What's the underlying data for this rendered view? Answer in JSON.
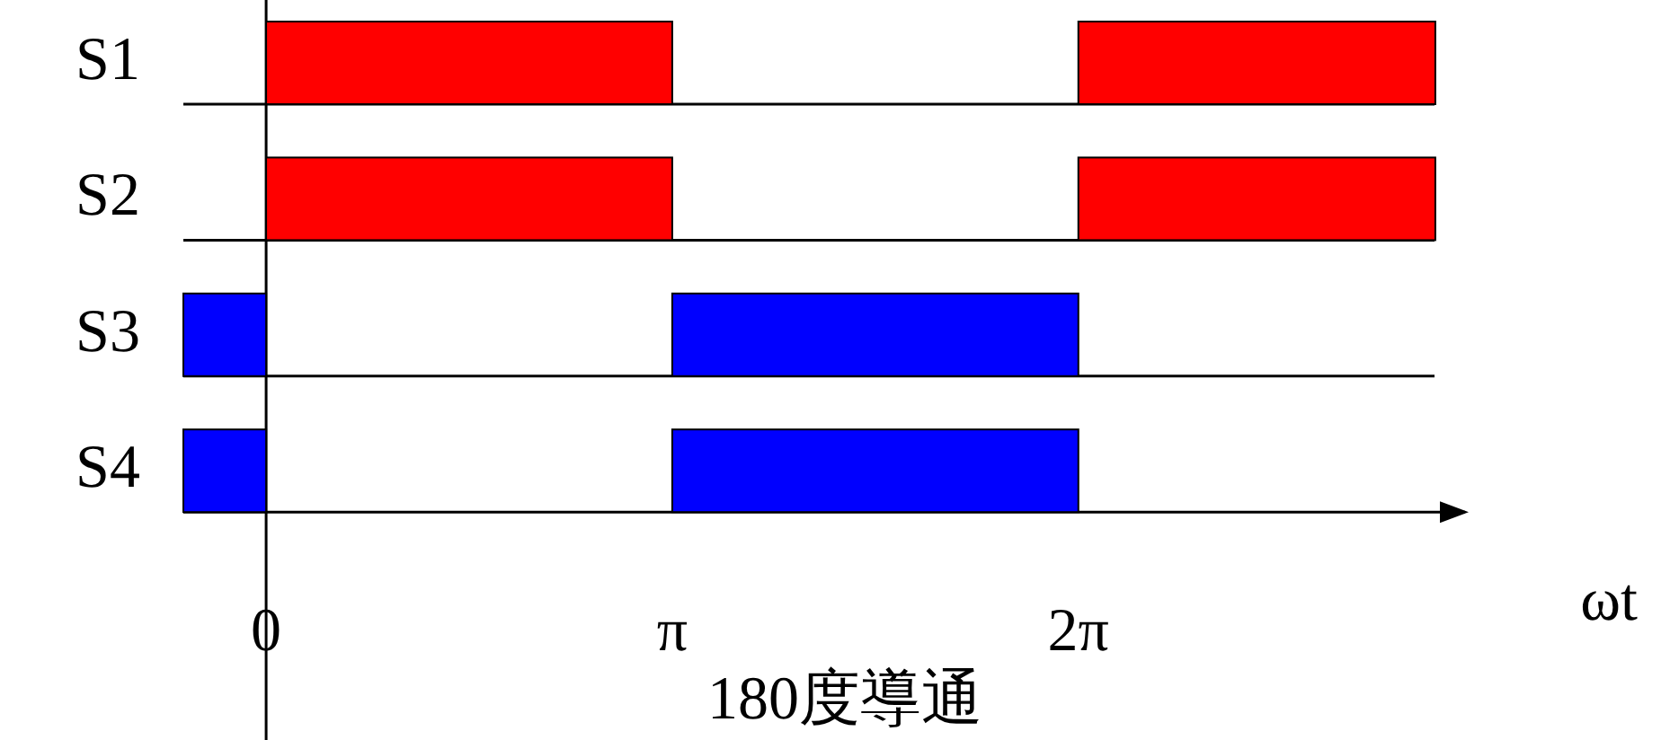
{
  "chart_data": {
    "type": "bar",
    "orientation": "horizontal",
    "categories": [
      "S1",
      "S2",
      "S3",
      "S4"
    ],
    "xlabel": "ωt",
    "xlim": [
      -0.64,
      9.27
    ],
    "xticks": [
      0,
      {
        "value": 3.14,
        "label": "π"
      },
      {
        "value": 6.28,
        "label": "2π"
      }
    ],
    "series": [
      {
        "base": [
          0,
          0,
          -0.64,
          -0.64
        ],
        "values": [
          3.14,
          3.14,
          0.64,
          0.64
        ],
        "colors": [
          "#ff0000",
          "#ff0000",
          "#0000ff",
          "#0000ff"
        ]
      },
      {
        "base": [
          6.28,
          6.28,
          3.14,
          3.14
        ],
        "values": [
          2.76,
          2.76,
          3.14,
          3.14
        ],
        "colors": [
          "#ff0000",
          "#ff0000",
          "#0000ff",
          "#0000ff"
        ]
      }
    ],
    "annotations": [
      "180度導通"
    ]
  }
}
